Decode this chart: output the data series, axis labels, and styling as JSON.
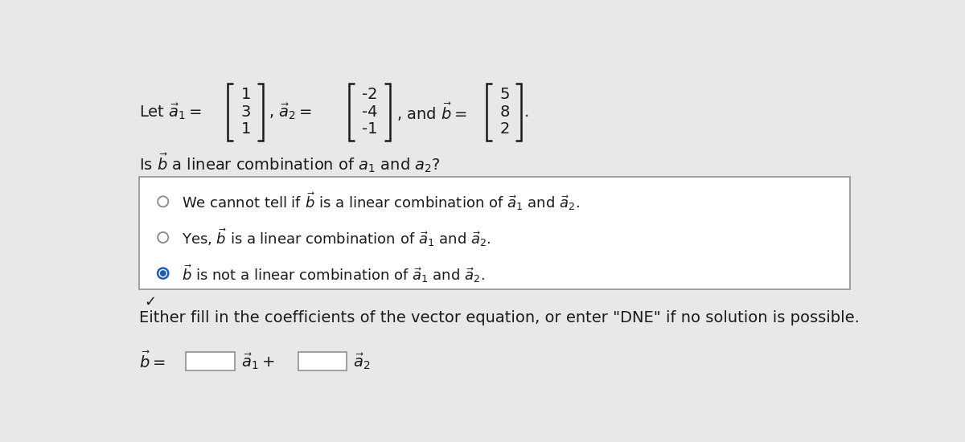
{
  "bg_color": "#e8e8e8",
  "white": "#ffffff",
  "black": "#1a1a1a",
  "blue_dot": "#1a5fb4",
  "border_color": "#999999",
  "a1": [
    1,
    3,
    1
  ],
  "a2": [
    -2,
    -4,
    -1
  ],
  "b": [
    5,
    8,
    2
  ],
  "option1": "We cannot tell if $\\vec{b}$ is a linear combination of $\\vec{a}_1$ and $\\vec{a}_2$.",
  "option2": "Yes, $\\vec{b}$ is a linear combination of $\\vec{a}_1$ and $\\vec{a}_2$.",
  "option3": "$\\vec{b}$ is not a linear combination of $\\vec{a}_1$ and $\\vec{a}_2$.",
  "footer": "Either fill in the coefficients of the vector equation, or enter \"DNE\" if no solution is possible.",
  "fs_main": 14,
  "fs_options": 13
}
